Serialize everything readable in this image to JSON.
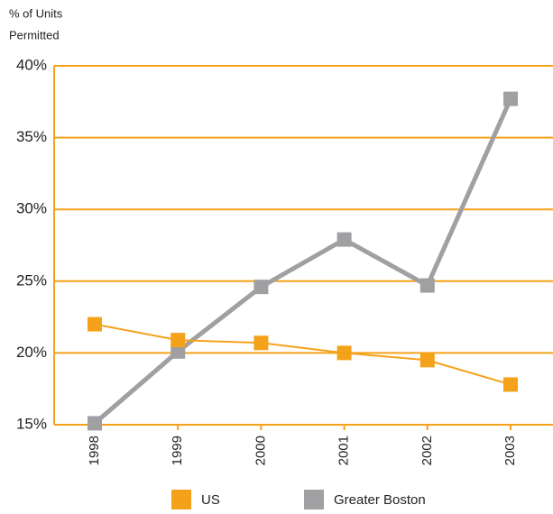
{
  "chart_data": {
    "type": "line",
    "y_label": [
      "% of Units",
      "Permitted"
    ],
    "categories": [
      "1998",
      "1999",
      "2000",
      "2001",
      "2002",
      "2003"
    ],
    "series": [
      {
        "name": "US",
        "color": "#f5a21b",
        "values": [
          22.0,
          20.9,
          20.7,
          20.0,
          19.5,
          17.8
        ]
      },
      {
        "name": "Greater Boston",
        "color": "#a0a0a3",
        "values": [
          15.1,
          20.1,
          24.6,
          27.9,
          24.7,
          37.7
        ]
      }
    ],
    "ylim": [
      15,
      40
    ],
    "yticks": [
      {
        "value": 15,
        "label": "15%"
      },
      {
        "value": 20,
        "label": "20%"
      },
      {
        "value": 25,
        "label": "25%"
      },
      {
        "value": 30,
        "label": "30%"
      },
      {
        "value": 35,
        "label": "35%"
      },
      {
        "value": 40,
        "label": "40%"
      }
    ],
    "grid": true,
    "grid_color": "#f5a21b",
    "legend": "bottom"
  }
}
